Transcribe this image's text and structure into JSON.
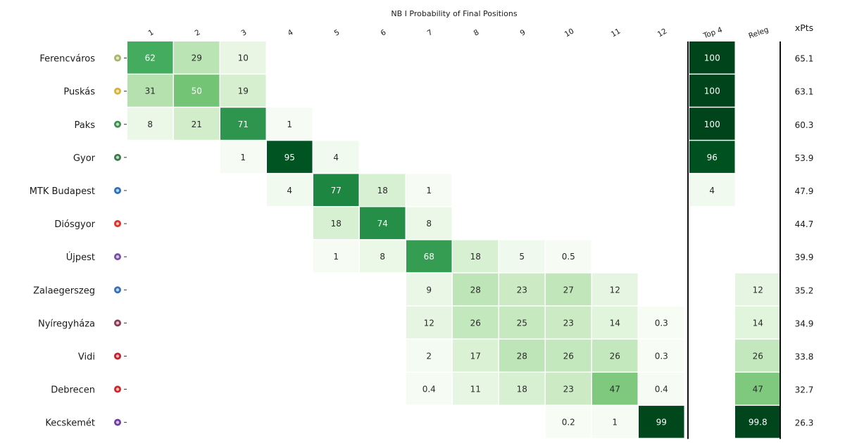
{
  "chart_data": {
    "type": "heatmap",
    "title": "NB I Probability of Final Positions",
    "position_columns": [
      "1",
      "2",
      "3",
      "4",
      "5",
      "6",
      "7",
      "8",
      "9",
      "10",
      "11",
      "12"
    ],
    "summary_columns": [
      "Top 4",
      "Releg"
    ],
    "xpts_header": "xPts",
    "color_scale": {
      "min": 0,
      "max": 100,
      "low": "#f7fcf5",
      "high": "#00441b"
    },
    "teams": [
      {
        "name": "Ferencváros",
        "badge": "#a9b56a",
        "probs": {
          "1": "62",
          "2": "29",
          "3": "10"
        },
        "top4": "100",
        "releg": null,
        "xpts": "65.1"
      },
      {
        "name": "Puskás",
        "badge": "#d9b233",
        "probs": {
          "1": "31",
          "2": "50",
          "3": "19"
        },
        "top4": "100",
        "releg": null,
        "xpts": "63.1"
      },
      {
        "name": "Paks",
        "badge": "#3f8f4e",
        "probs": {
          "1": "8",
          "2": "21",
          "3": "71",
          "4": "1"
        },
        "top4": "100",
        "releg": null,
        "xpts": "60.3"
      },
      {
        "name": "Gyor",
        "badge": "#3b7b4a",
        "probs": {
          "3": "1",
          "4": "95",
          "5": "4"
        },
        "top4": "96",
        "releg": null,
        "xpts": "53.9"
      },
      {
        "name": "MTK Budapest",
        "badge": "#2f6fc0",
        "probs": {
          "4": "4",
          "5": "77",
          "6": "18",
          "7": "1"
        },
        "top4": "4",
        "releg": null,
        "xpts": "47.9"
      },
      {
        "name": "Diósgyor",
        "badge": "#d8322b",
        "probs": {
          "5": "18",
          "6": "74",
          "7": "8"
        },
        "top4": null,
        "releg": null,
        "xpts": "44.7"
      },
      {
        "name": "Újpest",
        "badge": "#7a4fa8",
        "probs": {
          "5": "1",
          "6": "8",
          "7": "68",
          "8": "18",
          "9": "5",
          "10": "0.5"
        },
        "top4": null,
        "releg": null,
        "xpts": "39.9"
      },
      {
        "name": "Zalaegerszeg",
        "badge": "#3572b8",
        "probs": {
          "7": "9",
          "8": "28",
          "9": "23",
          "10": "27",
          "11": "12"
        },
        "top4": null,
        "releg": "12",
        "xpts": "35.2"
      },
      {
        "name": "Nyíregyháza",
        "badge": "#8c3a56",
        "probs": {
          "7": "12",
          "8": "26",
          "9": "25",
          "10": "23",
          "11": "14",
          "12": "0.3"
        },
        "top4": null,
        "releg": "14",
        "xpts": "34.9"
      },
      {
        "name": "Vidi",
        "badge": "#c0242e",
        "probs": {
          "7": "2",
          "8": "17",
          "9": "28",
          "10": "26",
          "11": "26",
          "12": "0.3"
        },
        "top4": null,
        "releg": "26",
        "xpts": "33.8"
      },
      {
        "name": "Debrecen",
        "badge": "#d6242b",
        "probs": {
          "7": "0.4",
          "8": "11",
          "9": "18",
          "10": "23",
          "11": "47",
          "12": "0.4"
        },
        "top4": null,
        "releg": "47",
        "xpts": "32.7"
      },
      {
        "name": "Kecskemét",
        "badge": "#6e3f9e",
        "probs": {
          "10": "0.2",
          "11": "1",
          "12": "99"
        },
        "top4": null,
        "releg": "99.8",
        "xpts": "26.3"
      }
    ]
  }
}
